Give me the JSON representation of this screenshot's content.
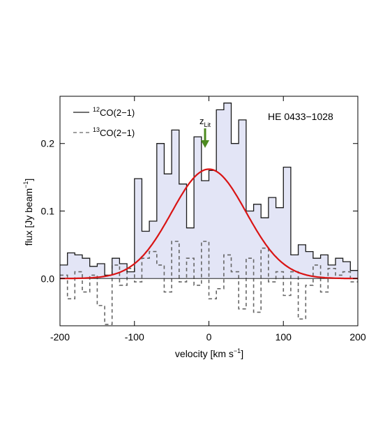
{
  "chart_data": {
    "type": "line",
    "object_label": "HE 0433−1028",
    "xlabel": {
      "main": "velocity [km s",
      "sup": "−1",
      "close": "]"
    },
    "ylabel": {
      "main": "flux [Jy beam",
      "sup": "−1",
      "close": "]"
    },
    "xlim": [
      -200,
      200
    ],
    "ylim": [
      -0.07,
      0.27
    ],
    "xticks": [
      -200,
      -100,
      0,
      100,
      200
    ],
    "xtick_labels": [
      "-200",
      "-100",
      "0",
      "100",
      "200"
    ],
    "yticks": [
      0.0,
      0.1,
      0.2
    ],
    "ytick_labels": [
      "0.0",
      "0.1",
      "0.2"
    ],
    "colors": {
      "fill": "#e3e5f6",
      "co12": "#1a1a1a",
      "co13": "#666666",
      "fit": "#d91414",
      "arrow": "#4c8a1f",
      "zero": "#222222"
    },
    "legend": [
      {
        "sup": "12",
        "label": "CO(2−1)",
        "style": "solid"
      },
      {
        "sup": "13",
        "label": "CO(2−1)",
        "style": "dashed"
      }
    ],
    "annotation": {
      "main": "z",
      "sub": "Lit",
      "x": 0
    },
    "bin_width": 10,
    "series": [
      {
        "name": "12CO(2−1)",
        "style": "step-filled",
        "x": [
          -200,
          -190,
          -180,
          -170,
          -160,
          -150,
          -140,
          -130,
          -120,
          -110,
          -100,
          -90,
          -80,
          -70,
          -60,
          -50,
          -40,
          -30,
          -20,
          -10,
          0,
          10,
          20,
          30,
          40,
          50,
          60,
          70,
          80,
          90,
          100,
          110,
          120,
          130,
          140,
          150,
          160,
          170,
          180,
          190
        ],
        "y": [
          0.02,
          0.038,
          0.035,
          0.03,
          0.018,
          0.022,
          0.005,
          0.03,
          0.022,
          0.01,
          0.148,
          0.07,
          0.085,
          0.2,
          0.155,
          0.22,
          0.14,
          0.075,
          0.21,
          0.145,
          0.16,
          0.25,
          0.26,
          0.2,
          0.235,
          0.1,
          0.11,
          0.09,
          0.12,
          0.105,
          0.165,
          0.035,
          0.05,
          0.04,
          0.03,
          0.035,
          0.02,
          0.03,
          0.025,
          0.012
        ]
      },
      {
        "name": "13CO(2−1)",
        "style": "step-dashed",
        "x": [
          -200,
          -190,
          -180,
          -170,
          -160,
          -150,
          -140,
          -130,
          -120,
          -110,
          -100,
          -90,
          -80,
          -70,
          -60,
          -50,
          -40,
          -30,
          -20,
          -10,
          0,
          10,
          20,
          30,
          40,
          50,
          60,
          70,
          80,
          90,
          100,
          110,
          120,
          130,
          140,
          150,
          160,
          170,
          180,
          190
        ],
        "y": [
          0.005,
          -0.03,
          0.01,
          -0.02,
          0.005,
          -0.04,
          -0.068,
          0.02,
          -0.01,
          0.015,
          -0.005,
          0.03,
          0.04,
          0.02,
          -0.02,
          0.055,
          -0.005,
          0.03,
          -0.01,
          0.055,
          -0.03,
          -0.015,
          0.035,
          0.01,
          -0.045,
          0.03,
          -0.05,
          0.045,
          -0.005,
          0.01,
          -0.025,
          0.01,
          -0.06,
          -0.01,
          0.02,
          -0.02,
          0.015,
          0.005,
          0.01,
          -0.005
        ]
      },
      {
        "name": "gaussian fit",
        "style": "curve",
        "amplitude": 0.162,
        "center": 0,
        "sigma": 50
      }
    ]
  }
}
